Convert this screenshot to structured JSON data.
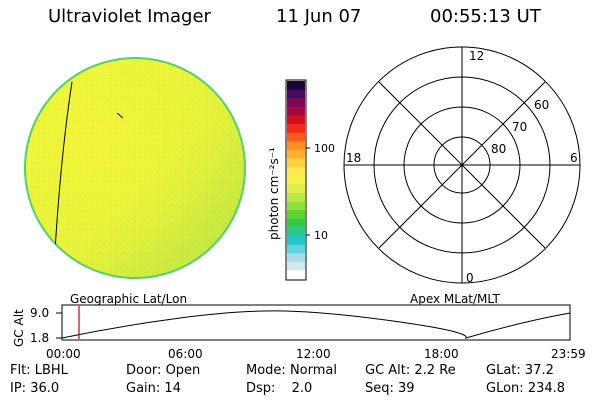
{
  "header": {
    "title": "Ultraviolet Imager",
    "date": "11 Jun 07",
    "time": "00:55:13 UT"
  },
  "colors": {
    "disk_primary": "#e8f53a",
    "disk_secondary": "#bfe844",
    "disk_edge": "#4ecf6a",
    "track_marker": "#cc0000"
  },
  "colorbar": {
    "unit": "photon cm⁻²s⁻¹",
    "tick_100": "100",
    "tick_10": "10",
    "colors": [
      "#ffffff",
      "#d0e8ee",
      "#a8dde8",
      "#5fd3de",
      "#22c6c6",
      "#2ac98a",
      "#34c84a",
      "#5ed433",
      "#8ee03a",
      "#bde84a",
      "#dff04e",
      "#f2f248",
      "#ffe94a",
      "#ffd040",
      "#ffb030",
      "#ff8f20",
      "#ff5a1a",
      "#f02a1a",
      "#d0101a",
      "#a40a40",
      "#7a0a58",
      "#480a5e",
      "#1a0436"
    ]
  },
  "polar": {
    "label_12": "12",
    "label_18": "18",
    "label_6": "6",
    "label_0": "0",
    "label_60": "60",
    "label_70": "70",
    "label_80": "80"
  },
  "alt_plot": {
    "left_title": "Geographic Lat/Lon",
    "right_title": "Apex MLat/MLT",
    "ylabel": "GC Alt",
    "ytick_top": "9.0",
    "ytick_bottom": "1.8",
    "xticks": [
      "00:00",
      "06:00",
      "12:00",
      "18:00",
      "23:59"
    ],
    "marker_time": "00:55"
  },
  "info": {
    "flt_label": "Flt:",
    "flt_value": "LBHL",
    "ip_label": "IP:",
    "ip_value": "36.0",
    "door_label": "Door:",
    "door_value": "Open",
    "gain_label": "Gain:",
    "gain_value": "14",
    "mode_label": "Mode:",
    "mode_value": "Normal",
    "dsp_label": "Dsp:",
    "dsp_value": "2.0",
    "gcalt_label": "GC Alt:",
    "gcalt_value": "2.2 Re",
    "seq_label": "Seq:",
    "seq_value": "39",
    "glat_label": "GLat:",
    "glat_value": "37.2",
    "glon_label": "GLon:",
    "glon_value": "234.8"
  }
}
